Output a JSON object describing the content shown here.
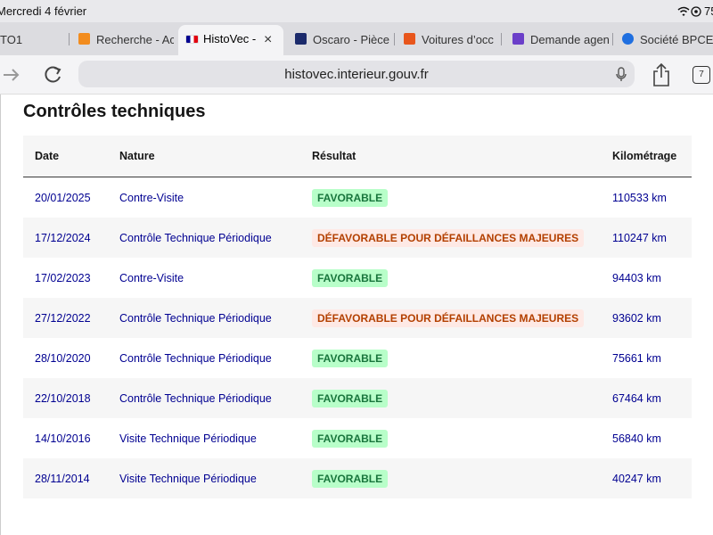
{
  "status_bar": {
    "time": "Mercredi 4 février",
    "battery": "75"
  },
  "tabs": [
    "TO1",
    "Recherche - Ac",
    "HistoVec - ",
    "Oscaro - Pièce",
    "Voitures d’occ",
    "Demande agen",
    "Société BPCE I"
  ],
  "address_bar": {
    "url": "histovec.interieur.gouv.fr",
    "tab_count": "7"
  },
  "section": {
    "title": "Contrôles techniques"
  },
  "table": {
    "headers": [
      "Date",
      "Nature",
      "Résultat",
      "Kilométrage"
    ],
    "rows": [
      [
        "20/01/2025",
        "Contre-Visite",
        "FAVORABLE",
        "110533 km"
      ],
      [
        "17/12/2024",
        "Contrôle Technique Périodique",
        "DÉFAVORABLE POUR DÉFAILLANCES MAJEURES",
        "110247 km"
      ],
      [
        "17/02/2023",
        "Contre-Visite",
        "FAVORABLE",
        "94403 km"
      ],
      [
        "27/12/2022",
        "Contrôle Technique Périodique",
        "DÉFAVORABLE POUR DÉFAILLANCES MAJEURES",
        "93602 km"
      ],
      [
        "28/10/2020",
        "Contrôle Technique Périodique",
        "FAVORABLE",
        "75661 km"
      ],
      [
        "22/10/2018",
        "Contrôle Technique Périodique",
        "FAVORABLE",
        "67464 km"
      ],
      [
        "14/10/2016",
        "Visite Technique Périodique",
        "FAVORABLE",
        "56840 km"
      ],
      [
        "28/11/2014",
        "Visite Technique Périodique",
        "FAVORABLE",
        "40247 km"
      ]
    ]
  }
}
